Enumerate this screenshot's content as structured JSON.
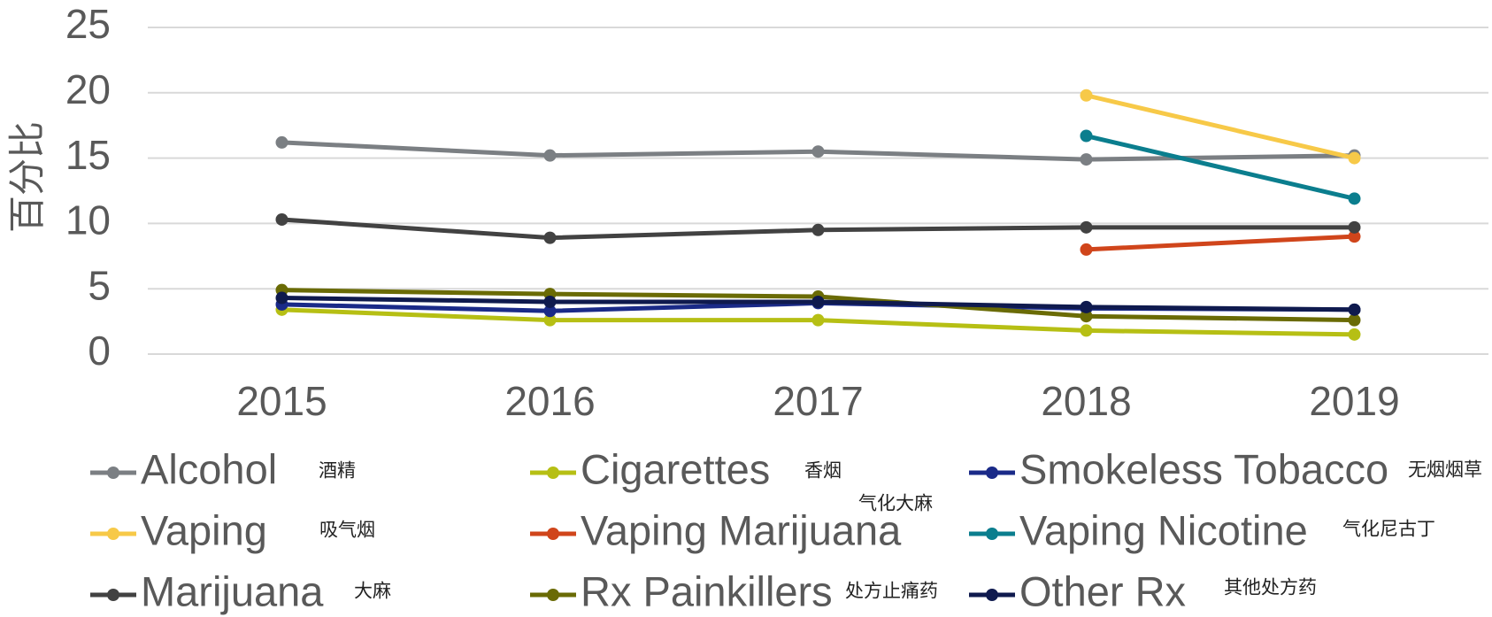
{
  "chart_data": {
    "type": "line",
    "y_label": "百分比",
    "categories": [
      "2015",
      "2016",
      "2017",
      "2018",
      "2019"
    ],
    "ylim": [
      0,
      25
    ],
    "yticks": [
      0,
      5,
      10,
      15,
      20,
      25
    ],
    "grid": true,
    "series": [
      {
        "name": "Alcohol",
        "note": "酒精",
        "color": "#7b7f83",
        "values": [
          16.2,
          15.2,
          15.5,
          14.9,
          15.2
        ]
      },
      {
        "name": "Cigarettes",
        "note": "香烟",
        "color": "#b6bf14",
        "values": [
          3.4,
          2.6,
          2.6,
          1.8,
          1.5
        ]
      },
      {
        "name": "Smokeless Tobacco",
        "note": "无烟烟草",
        "color": "#1a2a88",
        "values": [
          3.8,
          3.3,
          3.9,
          3.5,
          3.4
        ]
      },
      {
        "name": "Vaping",
        "note": "吸气烟",
        "color": "#f7c948",
        "values": [
          null,
          null,
          null,
          19.8,
          15.0
        ]
      },
      {
        "name": "Vaping Marijuana",
        "note": "气化大麻",
        "color": "#d0451b",
        "values": [
          null,
          null,
          null,
          8.0,
          9.0
        ]
      },
      {
        "name": "Vaping Nicotine",
        "note": "气化尼古丁",
        "color": "#0b7e8e",
        "values": [
          null,
          null,
          null,
          16.7,
          11.9
        ]
      },
      {
        "name": "Marijuana",
        "note": "大麻",
        "color": "#424242",
        "values": [
          10.3,
          8.9,
          9.5,
          9.7,
          9.7
        ]
      },
      {
        "name": "Rx Painkillers",
        "note": "处方止痛药",
        "color": "#6a6b05",
        "values": [
          4.9,
          4.6,
          4.4,
          2.9,
          2.6
        ]
      },
      {
        "name": "Other Rx",
        "note": "其他处方药",
        "color": "#0f1a4e",
        "values": [
          4.3,
          4.0,
          4.0,
          3.6,
          3.4
        ]
      }
    ]
  }
}
